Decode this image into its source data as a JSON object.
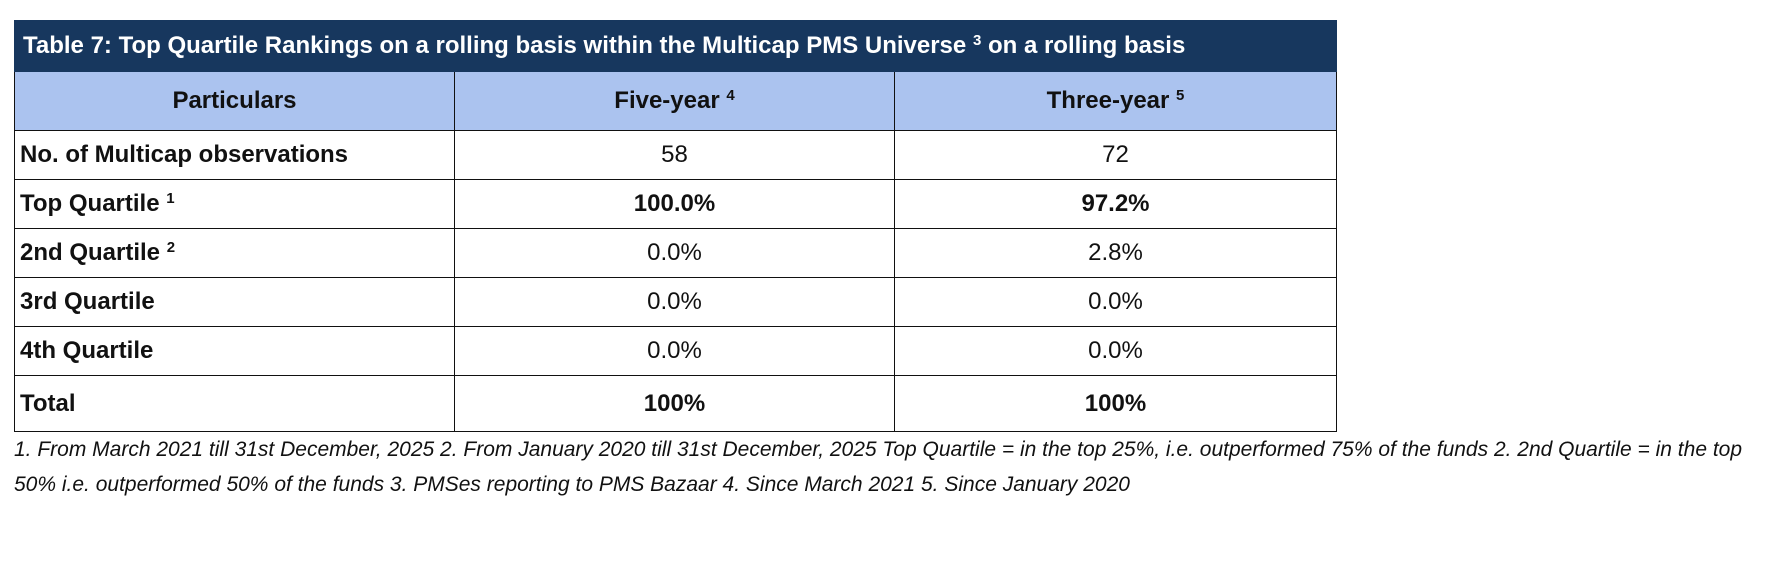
{
  "table": {
    "title": "Table 7: Top Quartile Rankings on a rolling basis within the Multicap PMS Universe",
    "title_sup": "3",
    "title_suffix": "on a rolling basis",
    "headers": [
      {
        "label": "Particulars",
        "sup": ""
      },
      {
        "label": "Five-year",
        "sup": "4"
      },
      {
        "label": "Three-year",
        "sup": "5"
      }
    ],
    "rows": [
      {
        "label": "No. of Multicap observations",
        "sup": "",
        "five_year": "58",
        "three_year": "72"
      },
      {
        "label": "Top Quartile",
        "sup": "1",
        "five_year": "100.0%",
        "three_year": "97.2%"
      },
      {
        "label": "2nd Quartile",
        "sup": "2",
        "five_year": "0.0%",
        "three_year": "2.8%"
      },
      {
        "label": "3rd Quartile",
        "sup": "",
        "five_year": "0.0%",
        "three_year": "0.0%"
      },
      {
        "label": "4th Quartile",
        "sup": "",
        "five_year": "0.0%",
        "three_year": "0.0%"
      },
      {
        "label": "Total",
        "sup": "",
        "five_year": "100%",
        "three_year": "100%"
      }
    ]
  },
  "footnote": "1. From March 2021 till 31st December, 2025 2. From January 2020 till 31st December, 2025 Top Quartile = in the top 25%, i.e. outperformed 75% of the funds 2. 2nd Quartile = in the top 50% i.e. outperformed 50% of the funds 3. PMSes reporting to PMS Bazaar 4. Since March 2021 5. Since January 2020",
  "colors": {
    "title_bg": "#17375e",
    "header_bg": "#abc3ef",
    "border": "#111111"
  }
}
